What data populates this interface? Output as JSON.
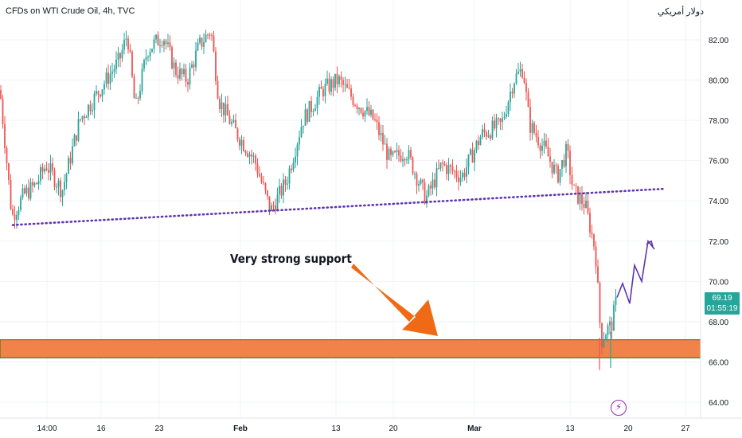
{
  "header": {
    "title": "CFDs on WTI Crude Oil, 4h, TVC",
    "currency": "دولار أمريكي"
  },
  "annotation": "Very strong support",
  "price_badge": {
    "price": "69.19",
    "countdown": "01:55:19"
  },
  "colors": {
    "up": "#26a69a",
    "down": "#ef5350",
    "support_zone": "#f0824a",
    "support_border": "#33691e",
    "trendline": "#5e35b1",
    "arrow": "#f06a15",
    "projection": "#5e35b1",
    "grid": "#f0f3fa"
  },
  "icons": {
    "event_marker": "lightning-icon"
  },
  "chart_data": {
    "type": "candlestick",
    "title": "CFDs on WTI Crude Oil, 4h, TVC",
    "y_axis": {
      "side": "right",
      "min": 62.8,
      "max": 84.5,
      "ticks": [
        "82.00",
        "80.00",
        "78.00",
        "76.00",
        "74.00",
        "72.00",
        "70.00",
        "68.00",
        "66.00",
        "64.00"
      ]
    },
    "x_axis": {
      "ticks": [
        "14:00",
        "16",
        "23",
        "Feb",
        "13",
        "20",
        "Mar",
        "13",
        "20",
        "27"
      ]
    },
    "grid": true,
    "approx_close_path": [
      {
        "x": 0,
        "close": 79.5
      },
      {
        "x": 6,
        "close": 77.0
      },
      {
        "x": 15,
        "close": 73.2
      },
      {
        "x": 30,
        "close": 74.3
      },
      {
        "x": 45,
        "close": 74.8
      },
      {
        "x": 58,
        "close": 75.8
      },
      {
        "x": 78,
        "close": 74.5
      },
      {
        "x": 100,
        "close": 78.0
      },
      {
        "x": 125,
        "close": 79.5
      },
      {
        "x": 150,
        "close": 81.0
      },
      {
        "x": 160,
        "close": 82.3
      },
      {
        "x": 170,
        "close": 78.5
      },
      {
        "x": 185,
        "close": 81.5
      },
      {
        "x": 205,
        "close": 82.2
      },
      {
        "x": 220,
        "close": 80.5
      },
      {
        "x": 235,
        "close": 80.0
      },
      {
        "x": 250,
        "close": 81.7
      },
      {
        "x": 265,
        "close": 82.5
      },
      {
        "x": 275,
        "close": 79.0
      },
      {
        "x": 295,
        "close": 77.5
      },
      {
        "x": 320,
        "close": 76.0
      },
      {
        "x": 340,
        "close": 73.5
      },
      {
        "x": 360,
        "close": 75.0
      },
      {
        "x": 380,
        "close": 78.0
      },
      {
        "x": 405,
        "close": 79.5
      },
      {
        "x": 425,
        "close": 80.0
      },
      {
        "x": 445,
        "close": 79.0
      },
      {
        "x": 470,
        "close": 78.0
      },
      {
        "x": 490,
        "close": 76.0
      },
      {
        "x": 510,
        "close": 76.5
      },
      {
        "x": 535,
        "close": 74.1
      },
      {
        "x": 555,
        "close": 75.8
      },
      {
        "x": 580,
        "close": 75.2
      },
      {
        "x": 605,
        "close": 77.3
      },
      {
        "x": 630,
        "close": 77.8
      },
      {
        "x": 645,
        "close": 80.0
      },
      {
        "x": 657,
        "close": 80.6
      },
      {
        "x": 665,
        "close": 77.8
      },
      {
        "x": 685,
        "close": 76.5
      },
      {
        "x": 700,
        "close": 75.2
      },
      {
        "x": 712,
        "close": 76.5
      },
      {
        "x": 720,
        "close": 74.5
      },
      {
        "x": 735,
        "close": 73.8
      },
      {
        "x": 748,
        "close": 71.5
      },
      {
        "x": 755,
        "close": 67.0
      },
      {
        "x": 762,
        "close": 67.6
      },
      {
        "x": 768,
        "close": 67.8
      },
      {
        "x": 775,
        "close": 69.19
      }
    ],
    "support_zone": {
      "from": 66.2,
      "to": 67.1
    },
    "trendline": {
      "from": {
        "x": 16,
        "price": 72.8
      },
      "to": {
        "x": 835,
        "price": 74.6
      },
      "style": "dotted"
    },
    "projection_path": [
      69.2,
      69.9,
      68.9,
      70.8,
      70.0,
      72.0,
      71.6
    ]
  }
}
